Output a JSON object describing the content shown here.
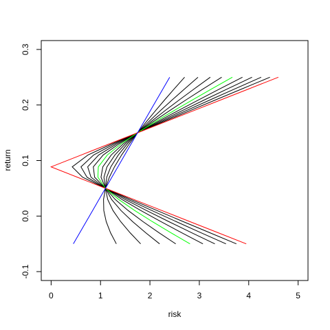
{
  "chart_data": {
    "type": "line",
    "x_label": "risk",
    "y_label": "return",
    "xlim": [
      -0.2,
      5.2
    ],
    "ylim": [
      -0.116,
      0.316
    ],
    "xticks": [
      0,
      1,
      2,
      3,
      4,
      5
    ],
    "yticks": [
      -0.1,
      {
        "value": 0,
        "label": "0.0"
      },
      0.1,
      0.2,
      0.3
    ],
    "y": [
      -0.05,
      -0.03,
      -0.01,
      0.01,
      0.03,
      0.05,
      0.07,
      0.0886,
      0.11,
      0.13,
      0.15,
      0.17,
      0.19,
      0.21,
      0.23,
      0.25
    ],
    "series": [
      {
        "color": "#000000",
        "x": [
          3.75,
          3.212,
          2.675,
          2.142,
          1.614,
          1.1,
          0.636,
          0.427,
          0.746,
          1.231,
          1.75,
          2.28,
          2.814,
          3.351,
          3.89,
          4.429
        ]
      },
      {
        "color": "#000000",
        "x": [
          3.539,
          3.034,
          2.533,
          2.038,
          1.555,
          1.1,
          0.726,
          0.604,
          0.861,
          1.28,
          1.75,
          2.239,
          2.737,
          3.239,
          3.745,
          4.252
        ]
      },
      {
        "color": "#000000",
        "x": [
          3.314,
          2.846,
          2.383,
          1.93,
          1.495,
          1.1,
          0.807,
          0.74,
          0.963,
          1.327,
          1.75,
          2.197,
          2.657,
          3.123,
          3.594,
          4.067
        ]
      },
      {
        "color": "#000000",
        "x": [
          3.073,
          2.644,
          2.222,
          1.815,
          1.432,
          1.1,
          0.88,
          0.854,
          1.054,
          1.373,
          1.75,
          2.155,
          2.574,
          3.002,
          3.436,
          3.873
        ]
      },
      {
        "color": "#000000",
        "x": [
          2.522,
          2.184,
          1.86,
          1.559,
          1.296,
          1.1,
          1.01,
          1.046,
          1.217,
          1.46,
          1.75,
          2.067,
          2.401,
          2.745,
          3.096,
          3.453
        ]
      },
      {
        "color": "#000000",
        "x": [
          2.196,
          1.914,
          1.65,
          1.414,
          1.223,
          1.1,
          1.069,
          1.13,
          1.291,
          1.502,
          1.75,
          2.022,
          2.309,
          2.607,
          2.912,
          3.222
        ]
      },
      {
        "color": "#000000",
        "x": [
          1.812,
          1.598,
          1.408,
          1.252,
          1.145,
          1.1,
          1.125,
          1.208,
          1.36,
          1.542,
          1.75,
          1.976,
          2.214,
          2.461,
          2.715,
          2.973
        ]
      },
      {
        "color": "#000000",
        "x": [
          1.32,
          1.202,
          1.115,
          1.066,
          1.061,
          1.1,
          1.179,
          1.282,
          1.427,
          1.582,
          1.75,
          1.929,
          2.115,
          2.306,
          2.502,
          2.702
        ]
      },
      {
        "color": "#00ff00",
        "x": [
          2.811,
          2.425,
          2.049,
          1.692,
          1.366,
          1.1,
          0.947,
          0.955,
          1.138,
          1.417,
          1.75,
          2.111,
          2.489,
          2.877,
          3.271,
          3.669
        ]
      },
      {
        "color": "#ff0000",
        "x": [
          3.95,
          3.38,
          2.81,
          2.24,
          1.67,
          1.1,
          0.53,
          0,
          0.61,
          1.18,
          1.75,
          2.32,
          2.89,
          3.46,
          4.03,
          4.6
        ]
      },
      {
        "color": "#0000ff",
        "x": [
          0.45,
          0.58,
          0.71,
          0.84,
          0.97,
          1.1,
          1.23,
          1.351,
          1.49,
          1.62,
          1.75,
          1.88,
          2.01,
          2.14,
          2.27,
          2.4
        ]
      }
    ]
  }
}
